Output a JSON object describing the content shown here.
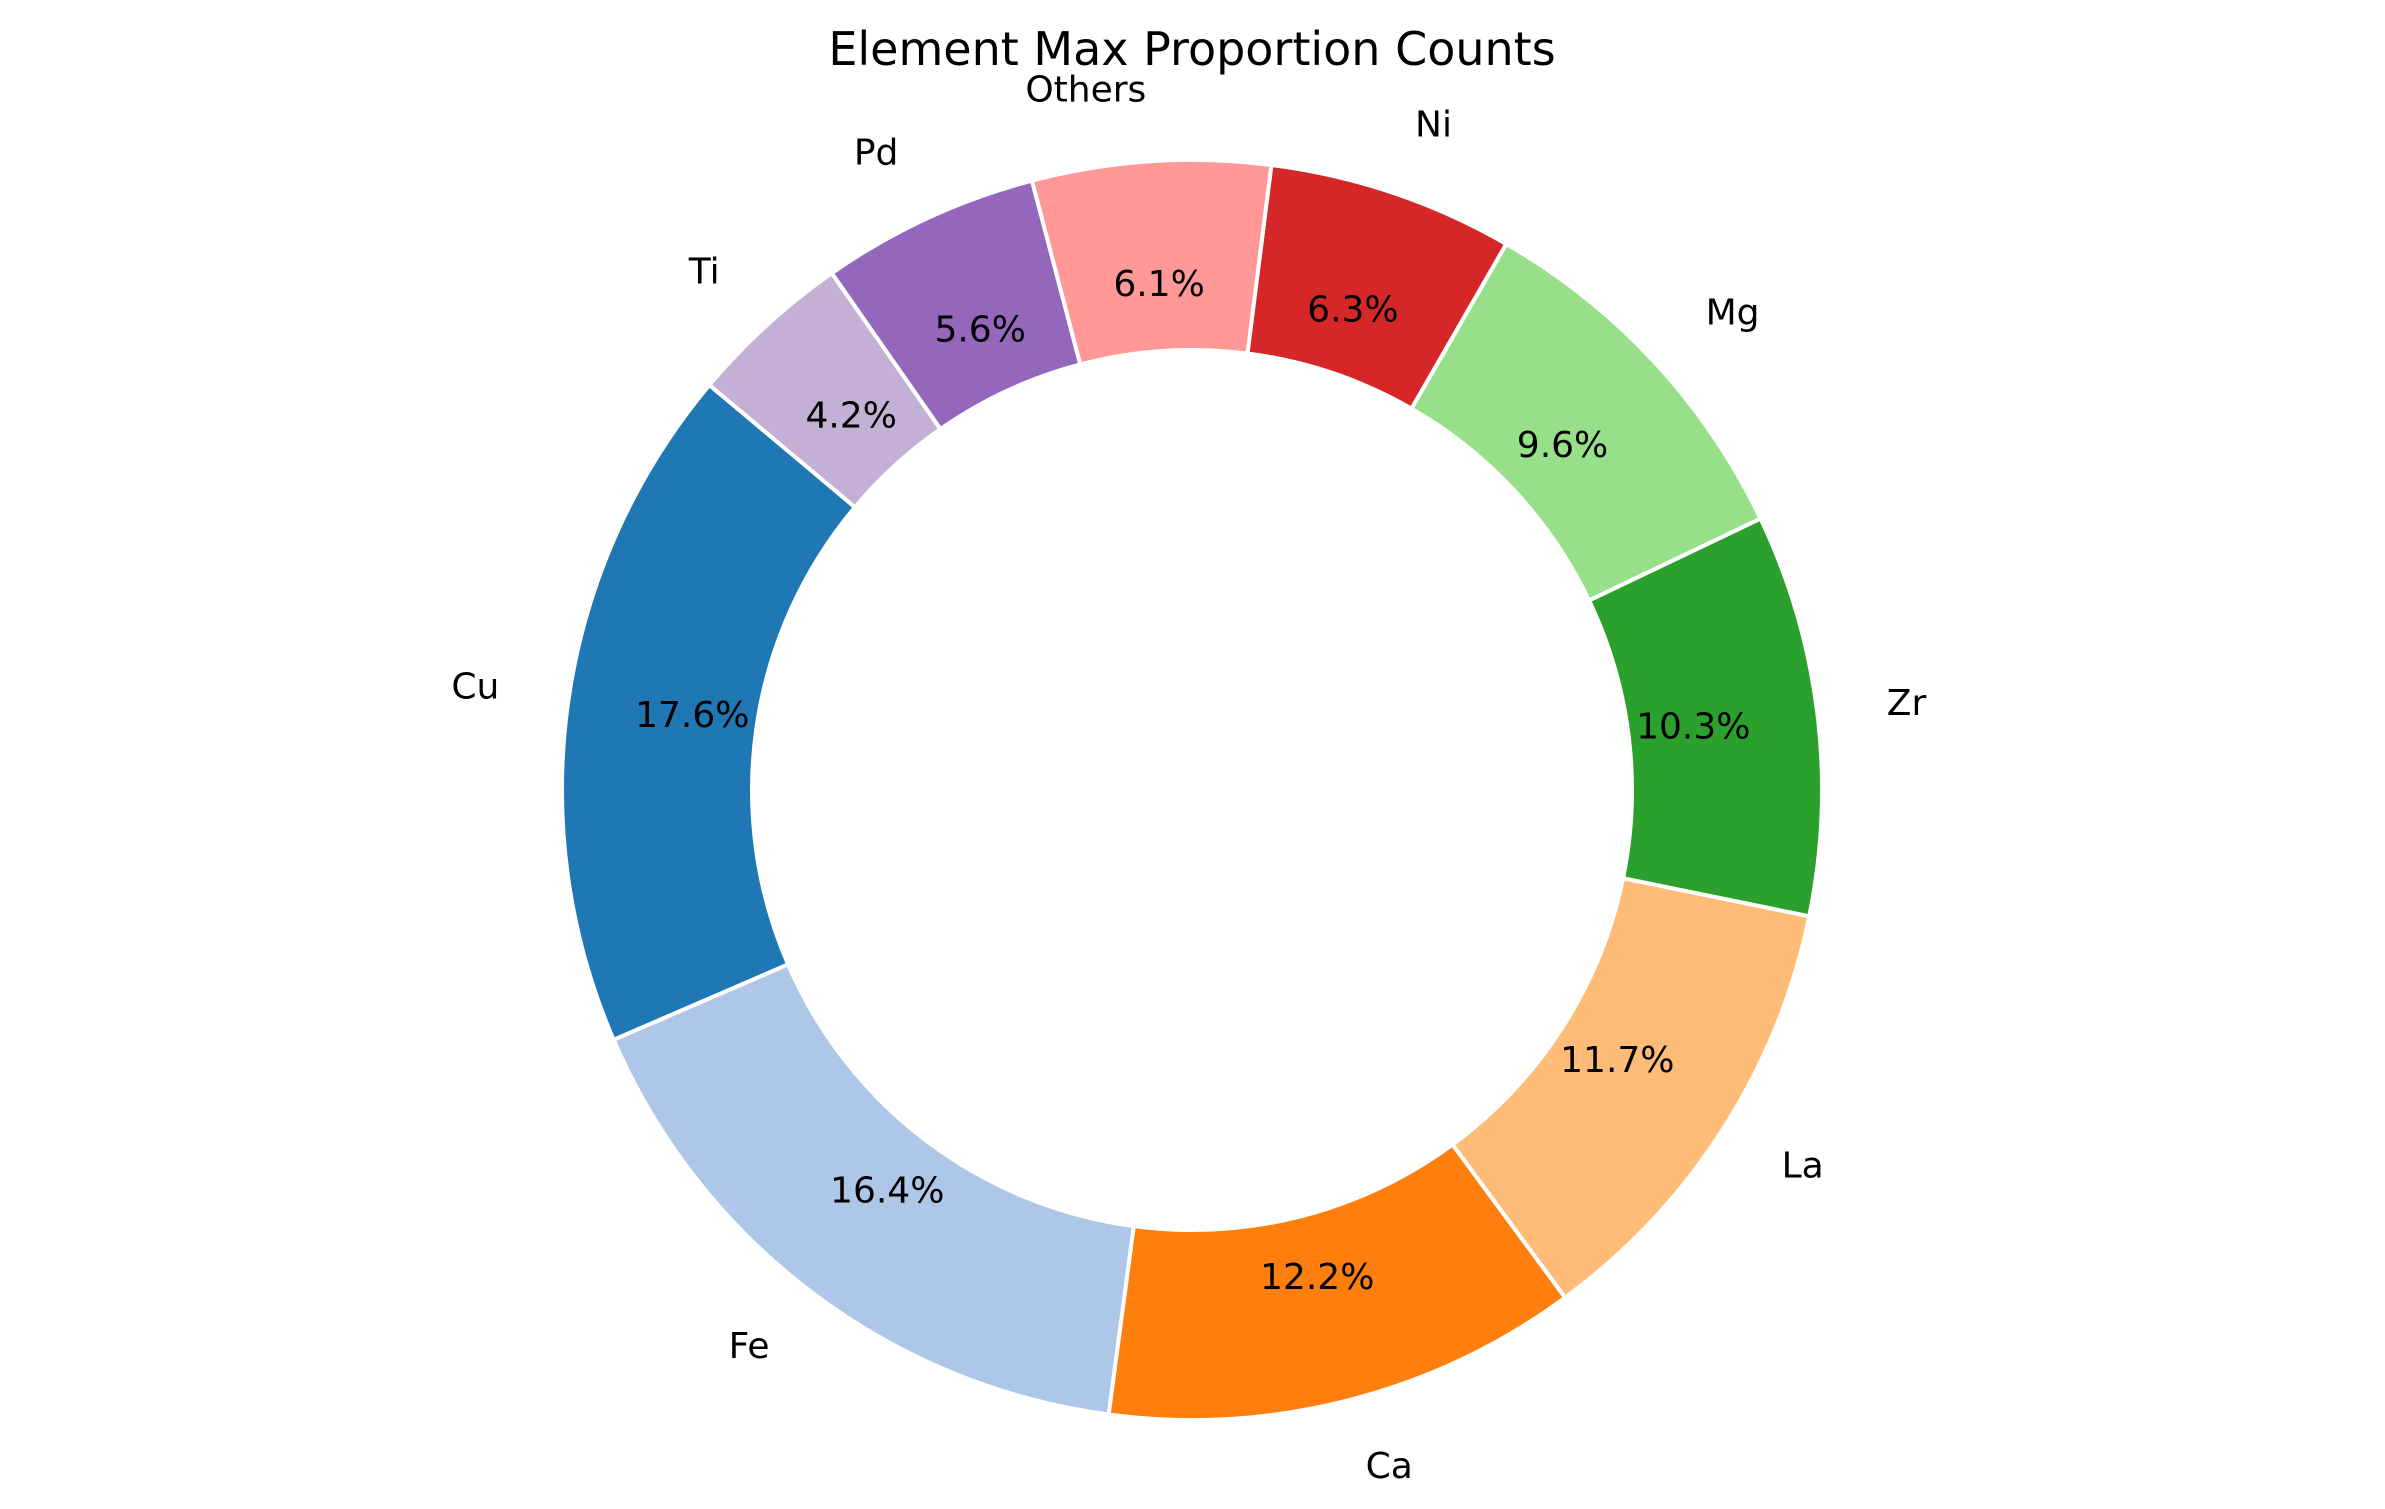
{
  "chart_data": {
    "type": "pie",
    "title": "Element Max Proportion Counts",
    "categories": [
      "Cu",
      "Fe",
      "Ca",
      "La",
      "Zr",
      "Mg",
      "Ni",
      "Others",
      "Pd",
      "Ti"
    ],
    "values": [
      17.6,
      16.4,
      12.2,
      11.7,
      10.3,
      9.6,
      6.3,
      6.1,
      5.6,
      4.2
    ],
    "value_labels": [
      "17.6%",
      "16.4%",
      "12.2%",
      "11.7%",
      "10.3%",
      "9.6%",
      "6.3%",
      "6.1%",
      "5.6%",
      "4.2%"
    ],
    "colors": [
      "#1f77b4",
      "#aec7e8",
      "#ff7f0e",
      "#ffbb78",
      "#2ca02c",
      "#98df8a",
      "#d62728",
      "#ff9896",
      "#9467bd",
      "#c5b0d5"
    ],
    "style": "donut",
    "start_angle_deg": 140,
    "direction": "counterclockwise",
    "legend": "none"
  }
}
